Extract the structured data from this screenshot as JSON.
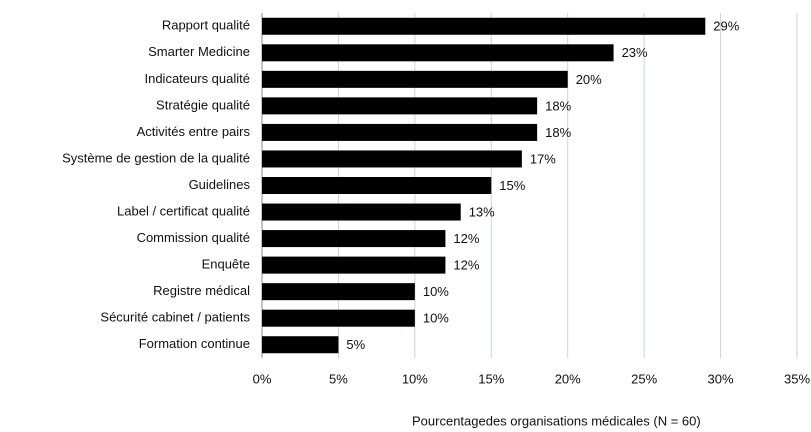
{
  "chart_data": {
    "type": "bar",
    "orientation": "horizontal",
    "categories": [
      "Rapport qualité",
      "Smarter Medicine",
      "Indicateurs qualité",
      "Stratégie qualité",
      "Activités entre pairs",
      "Système de gestion de la qualité",
      "Guidelines",
      "Label / certificat qualité",
      "Commission qualité",
      "Enquête",
      "Registre médical",
      "Sécurité cabinet / patients",
      "Formation continue"
    ],
    "values": [
      29,
      23,
      20,
      18,
      18,
      17,
      15,
      13,
      12,
      12,
      10,
      10,
      5
    ],
    "value_labels": [
      "29%",
      "23%",
      "20%",
      "18%",
      "18%",
      "17%",
      "15%",
      "13%",
      "12%",
      "12%",
      "10%",
      "10%",
      "5%"
    ],
    "color": "#000000",
    "xlim": [
      0,
      35
    ],
    "xticks": [
      {
        "value": 0,
        "label": "0%"
      },
      {
        "value": 5,
        "label": "5%"
      },
      {
        "value": 10,
        "label": "10%"
      },
      {
        "value": 15,
        "label": "15%"
      },
      {
        "value": 20,
        "label": "20%"
      },
      {
        "value": 25,
        "label": "25%"
      },
      {
        "value": 30,
        "label": "30%"
      },
      {
        "value": 35,
        "label": "35%"
      }
    ],
    "x_label": "Pourcentagedes organisations médicales (N = 60)",
    "grid": true
  }
}
